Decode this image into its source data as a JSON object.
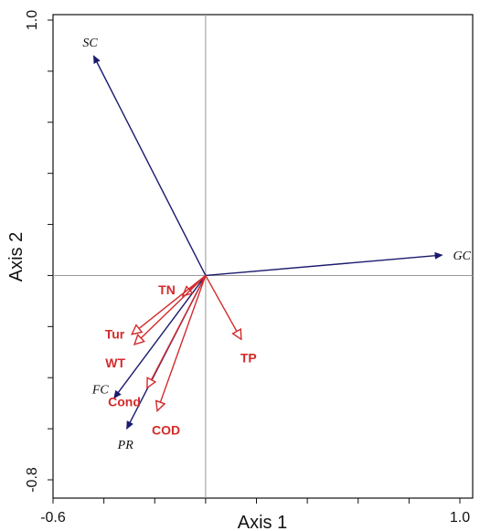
{
  "chart_data": {
    "type": "biplot",
    "xlabel": "Axis 1",
    "ylabel": "Axis 2",
    "xlim": [
      -0.6,
      1.0
    ],
    "ylim": [
      -0.8,
      1.0
    ],
    "x_tick_labels": [
      "-0.6",
      "1.0"
    ],
    "y_tick_labels": [
      "1.0",
      "-0.8"
    ],
    "grid": false,
    "origin_lines": true,
    "species": [
      {
        "label": "SC",
        "x": -0.44,
        "y": 0.86
      },
      {
        "label": "GC",
        "x": 0.93,
        "y": 0.08
      },
      {
        "label": "FC",
        "x": -0.36,
        "y": -0.48
      },
      {
        "label": "PR",
        "x": -0.31,
        "y": -0.6
      }
    ],
    "environment": [
      {
        "label": "TN",
        "x": -0.09,
        "y": -0.08
      },
      {
        "label": "TP",
        "x": 0.14,
        "y": -0.25
      },
      {
        "label": "Tur",
        "x": -0.29,
        "y": -0.23
      },
      {
        "label": "WT",
        "x": -0.28,
        "y": -0.27
      },
      {
        "label": "Cond",
        "x": -0.23,
        "y": -0.44
      },
      {
        "label": "COD",
        "x": -0.19,
        "y": -0.53
      }
    ],
    "colors": {
      "species": "#1a1a6e",
      "environment": "#d42a2a",
      "frame": "#111111",
      "origin_lines": "#999999"
    }
  }
}
